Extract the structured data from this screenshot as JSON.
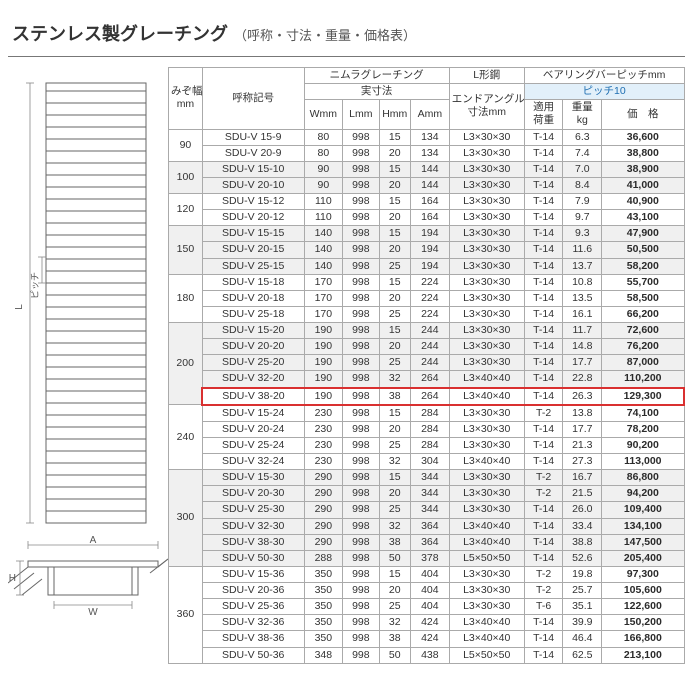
{
  "title": "ステンレス製グレーチング",
  "subtitle": "（呼称・寸法・重量・価格表）",
  "diagram_labels": {
    "L": "L",
    "pitch": "ピッチ",
    "A": "A",
    "W": "W",
    "H": "H"
  },
  "colors": {
    "text": "#333333",
    "line": "#aaaaaa",
    "highlight_border": "#d93030",
    "shade": "#f0f0f0",
    "pitch_header_bg": "#e2f0fa",
    "pitch_header_text": "#1f6fb2"
  },
  "headers": {
    "mizo": "みぞ幅\nmm",
    "model": "呼称記号",
    "nimura_grating": "ニムラグレーチング",
    "actual_dim": "実寸法",
    "W": "Wmm",
    "L": "Lmm",
    "H": "Hmm",
    "A": "Amm",
    "l_steel": "L形鋼",
    "end_angle": "エンドアングル\n寸法mm",
    "bearing_bar_pitch": "ベアリングバーピッチmm",
    "pitch10": "ピッチ10",
    "load": "適用\n荷重",
    "weight": "重量\nkg",
    "price": "価　格"
  },
  "groups": [
    {
      "mizo": "90",
      "shade": false,
      "rows": [
        {
          "model": "SDU-V 15-9",
          "W": "80",
          "L": "998",
          "H": "15",
          "A": "134",
          "ang": "L3×30×30",
          "load": "T-14",
          "wt": "6.3",
          "price": "36,600"
        },
        {
          "model": "SDU-V 20-9",
          "W": "80",
          "L": "998",
          "H": "20",
          "A": "134",
          "ang": "L3×30×30",
          "load": "T-14",
          "wt": "7.4",
          "price": "38,800"
        }
      ]
    },
    {
      "mizo": "100",
      "shade": true,
      "rows": [
        {
          "model": "SDU-V 15-10",
          "W": "90",
          "L": "998",
          "H": "15",
          "A": "144",
          "ang": "L3×30×30",
          "load": "T-14",
          "wt": "7.0",
          "price": "38,900"
        },
        {
          "model": "SDU-V 20-10",
          "W": "90",
          "L": "998",
          "H": "20",
          "A": "144",
          "ang": "L3×30×30",
          "load": "T-14",
          "wt": "8.4",
          "price": "41,000"
        }
      ]
    },
    {
      "mizo": "120",
      "shade": false,
      "rows": [
        {
          "model": "SDU-V 15-12",
          "W": "110",
          "L": "998",
          "H": "15",
          "A": "164",
          "ang": "L3×30×30",
          "load": "T-14",
          "wt": "7.9",
          "price": "40,900"
        },
        {
          "model": "SDU-V 20-12",
          "W": "110",
          "L": "998",
          "H": "20",
          "A": "164",
          "ang": "L3×30×30",
          "load": "T-14",
          "wt": "9.7",
          "price": "43,100"
        }
      ]
    },
    {
      "mizo": "150",
      "shade": true,
      "rows": [
        {
          "model": "SDU-V 15-15",
          "W": "140",
          "L": "998",
          "H": "15",
          "A": "194",
          "ang": "L3×30×30",
          "load": "T-14",
          "wt": "9.3",
          "price": "47,900"
        },
        {
          "model": "SDU-V 20-15",
          "W": "140",
          "L": "998",
          "H": "20",
          "A": "194",
          "ang": "L3×30×30",
          "load": "T-14",
          "wt": "11.6",
          "price": "50,500"
        },
        {
          "model": "SDU-V 25-15",
          "W": "140",
          "L": "998",
          "H": "25",
          "A": "194",
          "ang": "L3×30×30",
          "load": "T-14",
          "wt": "13.7",
          "price": "58,200"
        }
      ]
    },
    {
      "mizo": "180",
      "shade": false,
      "rows": [
        {
          "model": "SDU-V 15-18",
          "W": "170",
          "L": "998",
          "H": "15",
          "A": "224",
          "ang": "L3×30×30",
          "load": "T-14",
          "wt": "10.8",
          "price": "55,700"
        },
        {
          "model": "SDU-V 20-18",
          "W": "170",
          "L": "998",
          "H": "20",
          "A": "224",
          "ang": "L3×30×30",
          "load": "T-14",
          "wt": "13.5",
          "price": "58,500"
        },
        {
          "model": "SDU-V 25-18",
          "W": "170",
          "L": "998",
          "H": "25",
          "A": "224",
          "ang": "L3×30×30",
          "load": "T-14",
          "wt": "16.1",
          "price": "66,200"
        }
      ]
    },
    {
      "mizo": "200",
      "shade": true,
      "rows": [
        {
          "model": "SDU-V 15-20",
          "W": "190",
          "L": "998",
          "H": "15",
          "A": "244",
          "ang": "L3×30×30",
          "load": "T-14",
          "wt": "11.7",
          "price": "72,600"
        },
        {
          "model": "SDU-V 20-20",
          "W": "190",
          "L": "998",
          "H": "20",
          "A": "244",
          "ang": "L3×30×30",
          "load": "T-14",
          "wt": "14.8",
          "price": "76,200"
        },
        {
          "model": "SDU-V 25-20",
          "W": "190",
          "L": "998",
          "H": "25",
          "A": "244",
          "ang": "L3×30×30",
          "load": "T-14",
          "wt": "17.7",
          "price": "87,000"
        },
        {
          "model": "SDU-V 32-20",
          "W": "190",
          "L": "998",
          "H": "32",
          "A": "264",
          "ang": "L3×40×40",
          "load": "T-14",
          "wt": "22.8",
          "price": "110,200"
        },
        {
          "model": "SDU-V 38-20",
          "W": "190",
          "L": "998",
          "H": "38",
          "A": "264",
          "ang": "L3×40×40",
          "load": "T-14",
          "wt": "26.3",
          "price": "129,300",
          "highlight": true
        }
      ]
    },
    {
      "mizo": "240",
      "shade": false,
      "rows": [
        {
          "model": "SDU-V 15-24",
          "W": "230",
          "L": "998",
          "H": "15",
          "A": "284",
          "ang": "L3×30×30",
          "load": "T-2",
          "wt": "13.8",
          "price": "74,100"
        },
        {
          "model": "SDU-V 20-24",
          "W": "230",
          "L": "998",
          "H": "20",
          "A": "284",
          "ang": "L3×30×30",
          "load": "T-14",
          "wt": "17.7",
          "price": "78,200"
        },
        {
          "model": "SDU-V 25-24",
          "W": "230",
          "L": "998",
          "H": "25",
          "A": "284",
          "ang": "L3×30×30",
          "load": "T-14",
          "wt": "21.3",
          "price": "90,200"
        },
        {
          "model": "SDU-V 32-24",
          "W": "230",
          "L": "998",
          "H": "32",
          "A": "304",
          "ang": "L3×40×40",
          "load": "T-14",
          "wt": "27.3",
          "price": "113,000"
        }
      ]
    },
    {
      "mizo": "300",
      "shade": true,
      "rows": [
        {
          "model": "SDU-V 15-30",
          "W": "290",
          "L": "998",
          "H": "15",
          "A": "344",
          "ang": "L3×30×30",
          "load": "T-2",
          "wt": "16.7",
          "price": "86,800"
        },
        {
          "model": "SDU-V 20-30",
          "W": "290",
          "L": "998",
          "H": "20",
          "A": "344",
          "ang": "L3×30×30",
          "load": "T-2",
          "wt": "21.5",
          "price": "94,200"
        },
        {
          "model": "SDU-V 25-30",
          "W": "290",
          "L": "998",
          "H": "25",
          "A": "344",
          "ang": "L3×30×30",
          "load": "T-14",
          "wt": "26.0",
          "price": "109,400"
        },
        {
          "model": "SDU-V 32-30",
          "W": "290",
          "L": "998",
          "H": "32",
          "A": "364",
          "ang": "L3×40×40",
          "load": "T-14",
          "wt": "33.4",
          "price": "134,100"
        },
        {
          "model": "SDU-V 38-30",
          "W": "290",
          "L": "998",
          "H": "38",
          "A": "364",
          "ang": "L3×40×40",
          "load": "T-14",
          "wt": "38.8",
          "price": "147,500"
        },
        {
          "model": "SDU-V 50-30",
          "W": "288",
          "L": "998",
          "H": "50",
          "A": "378",
          "ang": "L5×50×50",
          "load": "T-14",
          "wt": "52.6",
          "price": "205,400"
        }
      ]
    },
    {
      "mizo": "360",
      "shade": false,
      "rows": [
        {
          "model": "SDU-V 15-36",
          "W": "350",
          "L": "998",
          "H": "15",
          "A": "404",
          "ang": "L3×30×30",
          "load": "T-2",
          "wt": "19.8",
          "price": "97,300"
        },
        {
          "model": "SDU-V 20-36",
          "W": "350",
          "L": "998",
          "H": "20",
          "A": "404",
          "ang": "L3×30×30",
          "load": "T-2",
          "wt": "25.7",
          "price": "105,600"
        },
        {
          "model": "SDU-V 25-36",
          "W": "350",
          "L": "998",
          "H": "25",
          "A": "404",
          "ang": "L3×30×30",
          "load": "T-6",
          "wt": "35.1",
          "price": "122,600"
        },
        {
          "model": "SDU-V 32-36",
          "W": "350",
          "L": "998",
          "H": "32",
          "A": "424",
          "ang": "L3×40×40",
          "load": "T-14",
          "wt": "39.9",
          "price": "150,200"
        },
        {
          "model": "SDU-V 38-36",
          "W": "350",
          "L": "998",
          "H": "38",
          "A": "424",
          "ang": "L3×40×40",
          "load": "T-14",
          "wt": "46.4",
          "price": "166,800"
        },
        {
          "model": "SDU-V 50-36",
          "W": "348",
          "L": "998",
          "H": "50",
          "A": "438",
          "ang": "L5×50×50",
          "load": "T-14",
          "wt": "62.5",
          "price": "213,100"
        }
      ]
    }
  ]
}
